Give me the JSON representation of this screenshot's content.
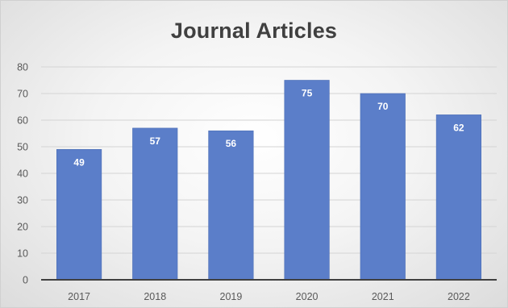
{
  "chart_data": {
    "type": "bar",
    "title": "Journal Articles",
    "categories": [
      "2017",
      "2018",
      "2019",
      "2020",
      "2021",
      "2022"
    ],
    "values": [
      49,
      57,
      56,
      75,
      70,
      62
    ],
    "y_ticks": [
      "0",
      "10",
      "20",
      "30",
      "40",
      "50",
      "60",
      "70",
      "80"
    ],
    "ylim": [
      0,
      80
    ],
    "xlabel": "",
    "ylabel": "",
    "grid": true,
    "legend": "none",
    "data_labels": "inside-top",
    "colors": {
      "bar": "#5b7ec9",
      "bar_edge": "#4a6db5",
      "grid": "#d4d4d4",
      "axis": "#404040"
    }
  }
}
